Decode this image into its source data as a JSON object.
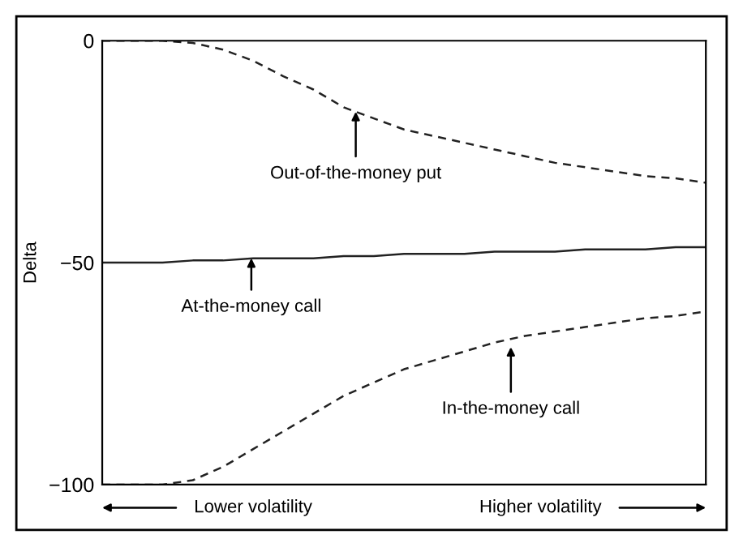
{
  "chart_data": {
    "type": "line",
    "ylabel": "Delta",
    "categories": [
      null,
      null,
      null,
      null,
      null,
      null,
      null,
      null,
      null,
      null,
      null,
      null,
      null,
      null,
      null,
      null,
      null,
      null,
      null,
      null,
      null
    ],
    "series": [
      {
        "color": "#222222",
        "line_style": "dashed",
        "values": [
          0,
          0,
          0,
          -0.5,
          -2,
          -4.5,
          -8,
          -11,
          -15,
          -17.5,
          -20,
          -21.5,
          -23,
          -24.5,
          -26,
          -27.5,
          -28.5,
          -29.5,
          -30.5,
          -31,
          -32
        ]
      },
      {
        "color": "#222222",
        "line_style": "solid",
        "values": [
          -50,
          -50,
          -50,
          -49.5,
          -49.5,
          -49,
          -49,
          -49,
          -48.5,
          -48.5,
          -48,
          -48,
          -48,
          -47.5,
          -47.5,
          -47.5,
          -47,
          -47,
          -47,
          -46.5,
          -46.5
        ]
      },
      {
        "color": "#222222",
        "line_style": "dashed",
        "values": [
          -100,
          -100,
          -100,
          -99,
          -96,
          -92,
          -88,
          -84,
          -80,
          -77,
          -74,
          -72,
          -70,
          -68,
          -66.5,
          -65.5,
          -64.5,
          -63.5,
          -62.5,
          -62,
          -61
        ]
      }
    ],
    "ylim": [
      -100,
      0
    ],
    "yticks": [
      {
        "value": 0,
        "label": "0"
      },
      {
        "value": -50,
        "label": "−50"
      },
      {
        "value": -100,
        "label": "−100"
      }
    ],
    "tick_labels": "y",
    "grid": false,
    "marker": "none",
    "annotations": [
      {
        "text": "Out-of-the-money put",
        "y": -16
      },
      {
        "text": "At-the-money call",
        "y": -49
      },
      {
        "text": "In-the-money call",
        "y": -69
      },
      "Lower volatility",
      "Higher volatility"
    ]
  }
}
